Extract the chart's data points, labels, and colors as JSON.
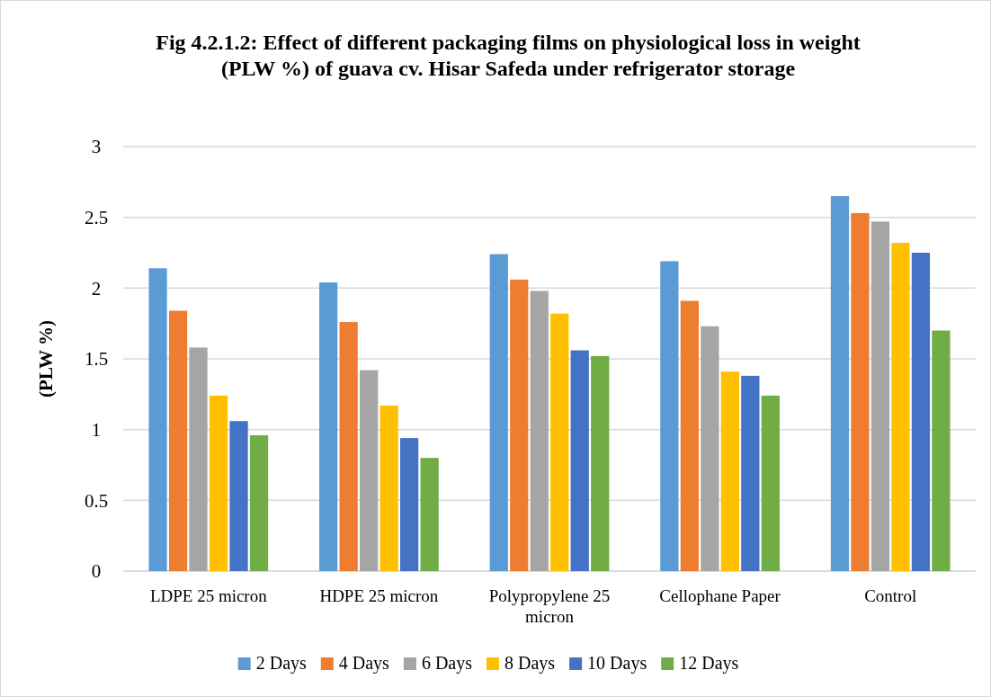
{
  "chart_data": {
    "type": "bar",
    "title": "Fig 4.2.1.2: Effect of different packaging films on physiological loss in weight (PLW %) of guava cv. Hisar Safeda under refrigerator storage",
    "ylabel": "(PLW %)",
    "categories": [
      "LDPE 25 micron",
      "HDPE 25 micron",
      "Polypropylene 25 micron",
      "Cellophane Paper",
      "Control"
    ],
    "series": [
      {
        "name": "2 Days",
        "color": "#5b9bd5",
        "values": [
          2.14,
          2.04,
          2.24,
          2.19,
          2.65
        ]
      },
      {
        "name": "4 Days",
        "color": "#ed7d31",
        "values": [
          1.84,
          1.76,
          2.06,
          1.91,
          2.53
        ]
      },
      {
        "name": "6 Days",
        "color": "#a5a5a5",
        "values": [
          1.58,
          1.42,
          1.98,
          1.73,
          2.47
        ]
      },
      {
        "name": "8 Days",
        "color": "#ffc000",
        "values": [
          1.24,
          1.17,
          1.82,
          1.41,
          2.32
        ]
      },
      {
        "name": "10 Days",
        "color": "#4472c4",
        "values": [
          1.06,
          0.94,
          1.56,
          1.38,
          2.25
        ]
      },
      {
        "name": "12 Days",
        "color": "#70ad47",
        "values": [
          0.96,
          0.8,
          1.52,
          1.24,
          1.7
        ]
      }
    ],
    "ylim": [
      0,
      3
    ],
    "yticks": [
      0,
      0.5,
      1,
      1.5,
      2,
      2.5,
      3
    ],
    "grid": "y",
    "legend": "bottom"
  }
}
